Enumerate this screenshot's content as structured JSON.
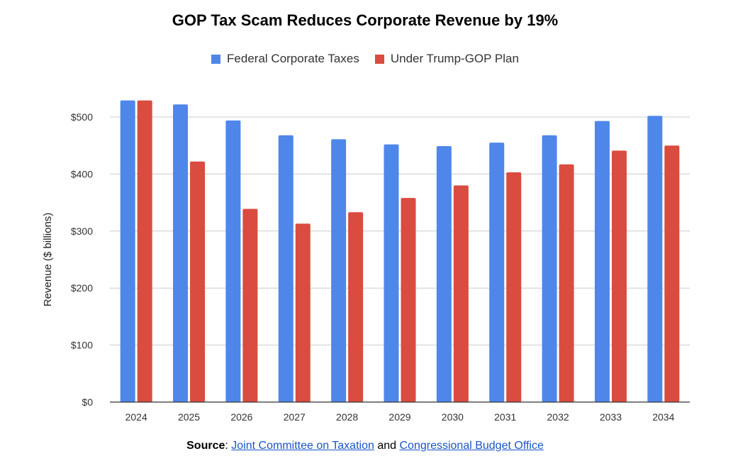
{
  "chart_data": {
    "type": "bar",
    "title": "GOP Tax Scam Reduces Corporate Revenue by 19%",
    "xlabel": "",
    "ylabel": "Revenue ($ billions)",
    "ylim": [
      0,
      500
    ],
    "yticks": [
      0,
      100,
      200,
      300,
      400,
      500
    ],
    "ytick_labels": [
      "$0",
      "$100",
      "$200",
      "$300",
      "$400",
      "$500"
    ],
    "categories": [
      "2024",
      "2025",
      "2026",
      "2027",
      "2028",
      "2029",
      "2030",
      "2031",
      "2032",
      "2033",
      "2034"
    ],
    "series": [
      {
        "name": "Federal Corporate Taxes",
        "color": "#4f86ea",
        "values": [
          529,
          522,
          494,
          468,
          461,
          452,
          449,
          455,
          468,
          493,
          502
        ]
      },
      {
        "name": "Under Trump-GOP Plan",
        "color": "#d94c3f",
        "values": [
          529,
          422,
          339,
          313,
          333,
          358,
          380,
          403,
          417,
          441,
          450
        ]
      }
    ],
    "grid": true,
    "legend": "top-center"
  },
  "source": {
    "label": "Source",
    "separator": ":",
    "link1": "Joint Committee on Taxation",
    "conjunction": "and",
    "link2": "Congressional Budget Office"
  }
}
